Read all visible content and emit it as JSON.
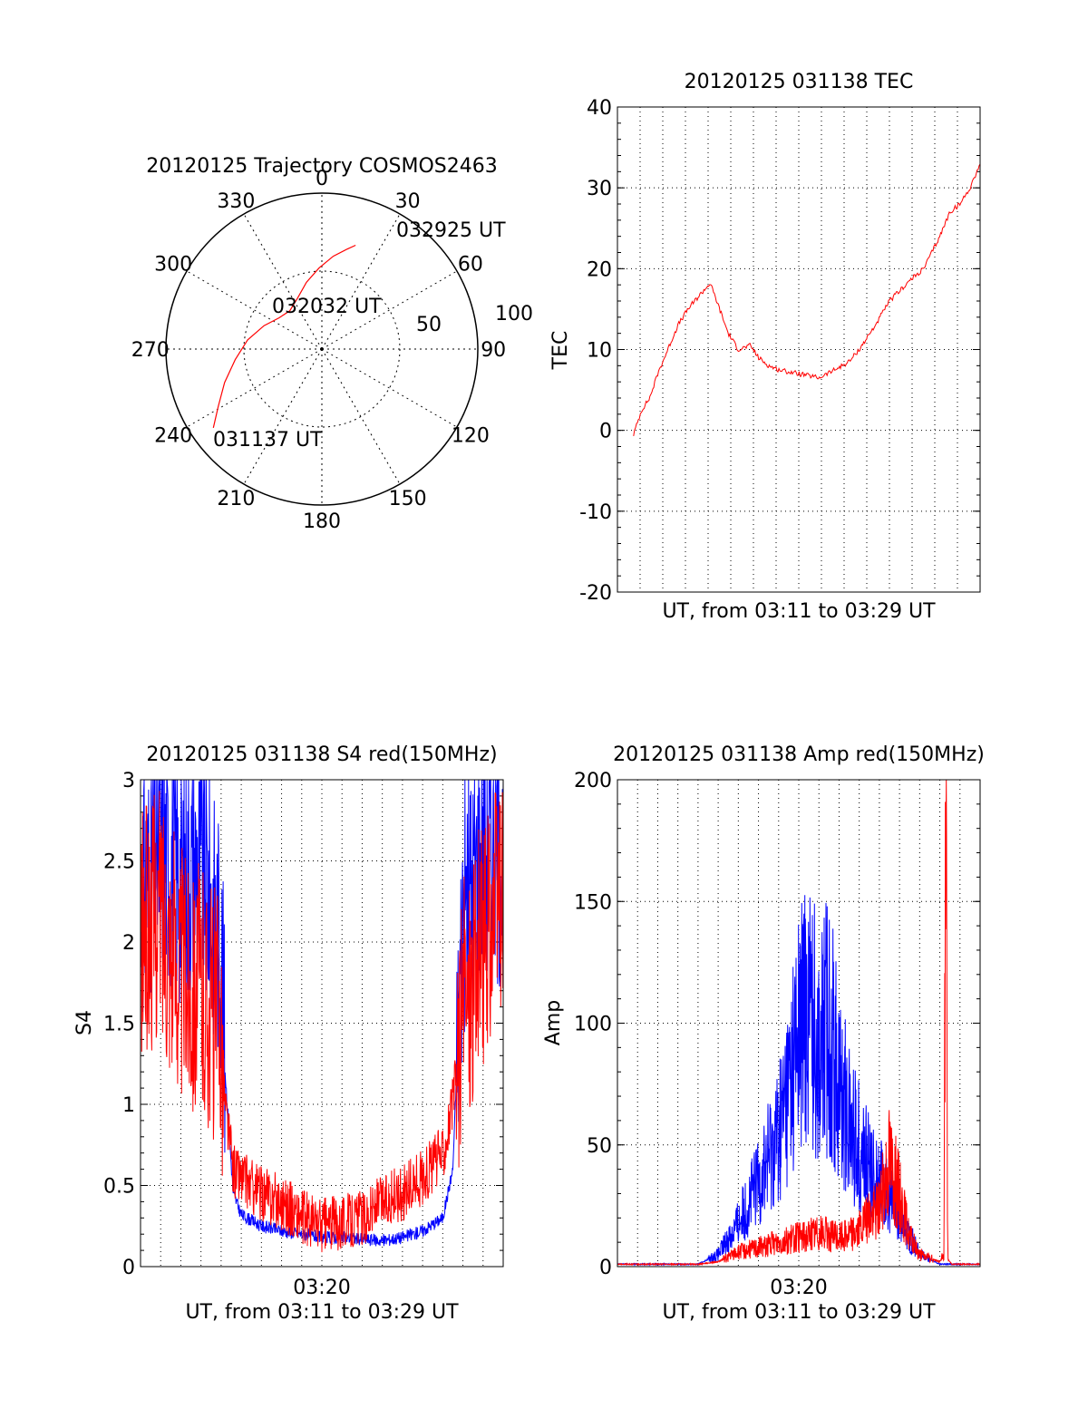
{
  "colors": {
    "red": "#ff0000",
    "blue": "#0000ff",
    "axis": "#000000",
    "grid": "#000000"
  },
  "chart_data": [
    {
      "id": "trajectory",
      "type": "polar",
      "title": "20120125 Trajectory COSMOS2463",
      "angle_labels": [
        "0",
        "30",
        "60",
        "90",
        "120",
        "150",
        "180",
        "210",
        "240",
        "270",
        "300",
        "330"
      ],
      "radial_labels": [
        "50",
        "100"
      ],
      "radial_range": [
        0,
        100
      ],
      "grid": true,
      "trajectory": {
        "color": "red",
        "points": [
          [
            234,
            86
          ],
          [
            241,
            76
          ],
          [
            251,
            66
          ],
          [
            263,
            56
          ],
          [
            277,
            48
          ],
          [
            292,
            40
          ],
          [
            306,
            34
          ],
          [
            320,
            32
          ],
          [
            334,
            36
          ],
          [
            347,
            44
          ],
          [
            358,
            52
          ],
          [
            367,
            60
          ],
          [
            374,
            66
          ],
          [
            378,
            70
          ]
        ]
      },
      "annotations": [
        {
          "label": "032925 UT",
          "az": 35,
          "r": 80
        },
        {
          "label": "032032 UT",
          "az": 340,
          "r": 42
        },
        {
          "label": "031137 UT",
          "az": 235,
          "r": 88
        }
      ]
    },
    {
      "id": "tec",
      "type": "line",
      "title": "20120125 031138 TEC",
      "xlabel": "UT, from 03:11 to 03:29 UT",
      "ylabel": "TEC",
      "ylim": [
        -20,
        40
      ],
      "yticks": [
        "-20",
        "-10",
        "0",
        "10",
        "20",
        "30",
        "40"
      ],
      "xlim": [
        0,
        18
      ],
      "grid": true,
      "series": [
        {
          "color": "red",
          "x": [
            0.8,
            1.2,
            1.6,
            2.0,
            2.5,
            3.0,
            3.5,
            4.0,
            4.6,
            5.0,
            5.5,
            6.0,
            6.6,
            7.0,
            7.5,
            8.0,
            9.0,
            10.0,
            10.8,
            11.5,
            12.0,
            12.8,
            13.5,
            14.5,
            15.2,
            16.0,
            16.5,
            17.0,
            17.5,
            18.0
          ],
          "y": [
            -0.5,
            2.5,
            4,
            7,
            10,
            13,
            15,
            16.5,
            18.2,
            15.5,
            12,
            10,
            10.5,
            9,
            8,
            7.5,
            7,
            6.5,
            7.5,
            8.5,
            10,
            13,
            16,
            18.5,
            20,
            24,
            27,
            28,
            30,
            33
          ]
        }
      ]
    },
    {
      "id": "s4",
      "type": "line",
      "title": "20120125 031138 S4 red(150MHz)",
      "xlabel": "UT, from 03:11 to 03:29 UT",
      "xtick_label": "03:20",
      "ylabel": "S4",
      "ylim": [
        0,
        3
      ],
      "yticks": [
        "0",
        "0.5",
        "1",
        "1.5",
        "2",
        "2.5",
        "3"
      ],
      "xlim": [
        0,
        18
      ],
      "grid": true,
      "series": [
        {
          "color": "blue",
          "x": [
            0,
            1,
            2,
            3,
            4,
            4.2,
            4.6,
            5,
            6,
            7,
            8,
            9,
            10,
            11,
            12,
            13,
            14,
            15,
            15.5,
            16,
            17,
            18
          ],
          "y": [
            2.3,
            2.6,
            2.4,
            2.5,
            2.0,
            1.2,
            0.45,
            0.32,
            0.25,
            0.22,
            0.2,
            0.18,
            0.18,
            0.17,
            0.16,
            0.18,
            0.22,
            0.3,
            0.6,
            2.2,
            2.6,
            2.5
          ]
        },
        {
          "color": "red",
          "x": [
            0,
            1,
            2,
            3,
            4,
            4.2,
            4.6,
            5,
            6,
            7,
            8,
            9,
            10,
            11,
            12,
            13,
            14,
            15,
            15.5,
            16,
            17,
            18
          ],
          "y": [
            2.0,
            2.2,
            1.8,
            1.7,
            1.5,
            1.0,
            0.6,
            0.55,
            0.45,
            0.4,
            0.3,
            0.25,
            0.28,
            0.3,
            0.4,
            0.45,
            0.55,
            0.7,
            1.0,
            1.6,
            2.0,
            2.3
          ]
        }
      ]
    },
    {
      "id": "amp",
      "type": "line",
      "title": "20120125 031138 Amp red(150MHz)",
      "xlabel": "UT, from 03:11 to 03:29 UT",
      "xtick_label": "03:20",
      "ylabel": "Amp",
      "ylim": [
        0,
        200
      ],
      "yticks": [
        "0",
        "50",
        "100",
        "150",
        "200"
      ],
      "xlim": [
        0,
        18
      ],
      "grid": true,
      "series": [
        {
          "color": "blue",
          "x": [
            0,
            2,
            4,
            5,
            6,
            7,
            8,
            8.5,
            9,
            9.5,
            10,
            10.5,
            11,
            11.5,
            12,
            12.5,
            13,
            13.5,
            14,
            15,
            16,
            18
          ],
          "y": [
            1,
            1,
            1,
            5,
            18,
            35,
            55,
            75,
            95,
            110,
            90,
            100,
            75,
            60,
            50,
            40,
            35,
            28,
            20,
            5,
            1,
            1
          ]
        },
        {
          "color": "red",
          "x": [
            0,
            4,
            5,
            6,
            7,
            8,
            9,
            10,
            11,
            12,
            13,
            13.5,
            14,
            14.5,
            15,
            16,
            16.2,
            16.3,
            16.4,
            16.6,
            17,
            18
          ],
          "y": [
            1,
            1,
            2,
            6,
            8,
            10,
            12,
            14,
            12,
            15,
            25,
            45,
            30,
            12,
            5,
            2,
            5,
            182,
            3,
            1,
            1,
            1
          ]
        }
      ]
    }
  ]
}
